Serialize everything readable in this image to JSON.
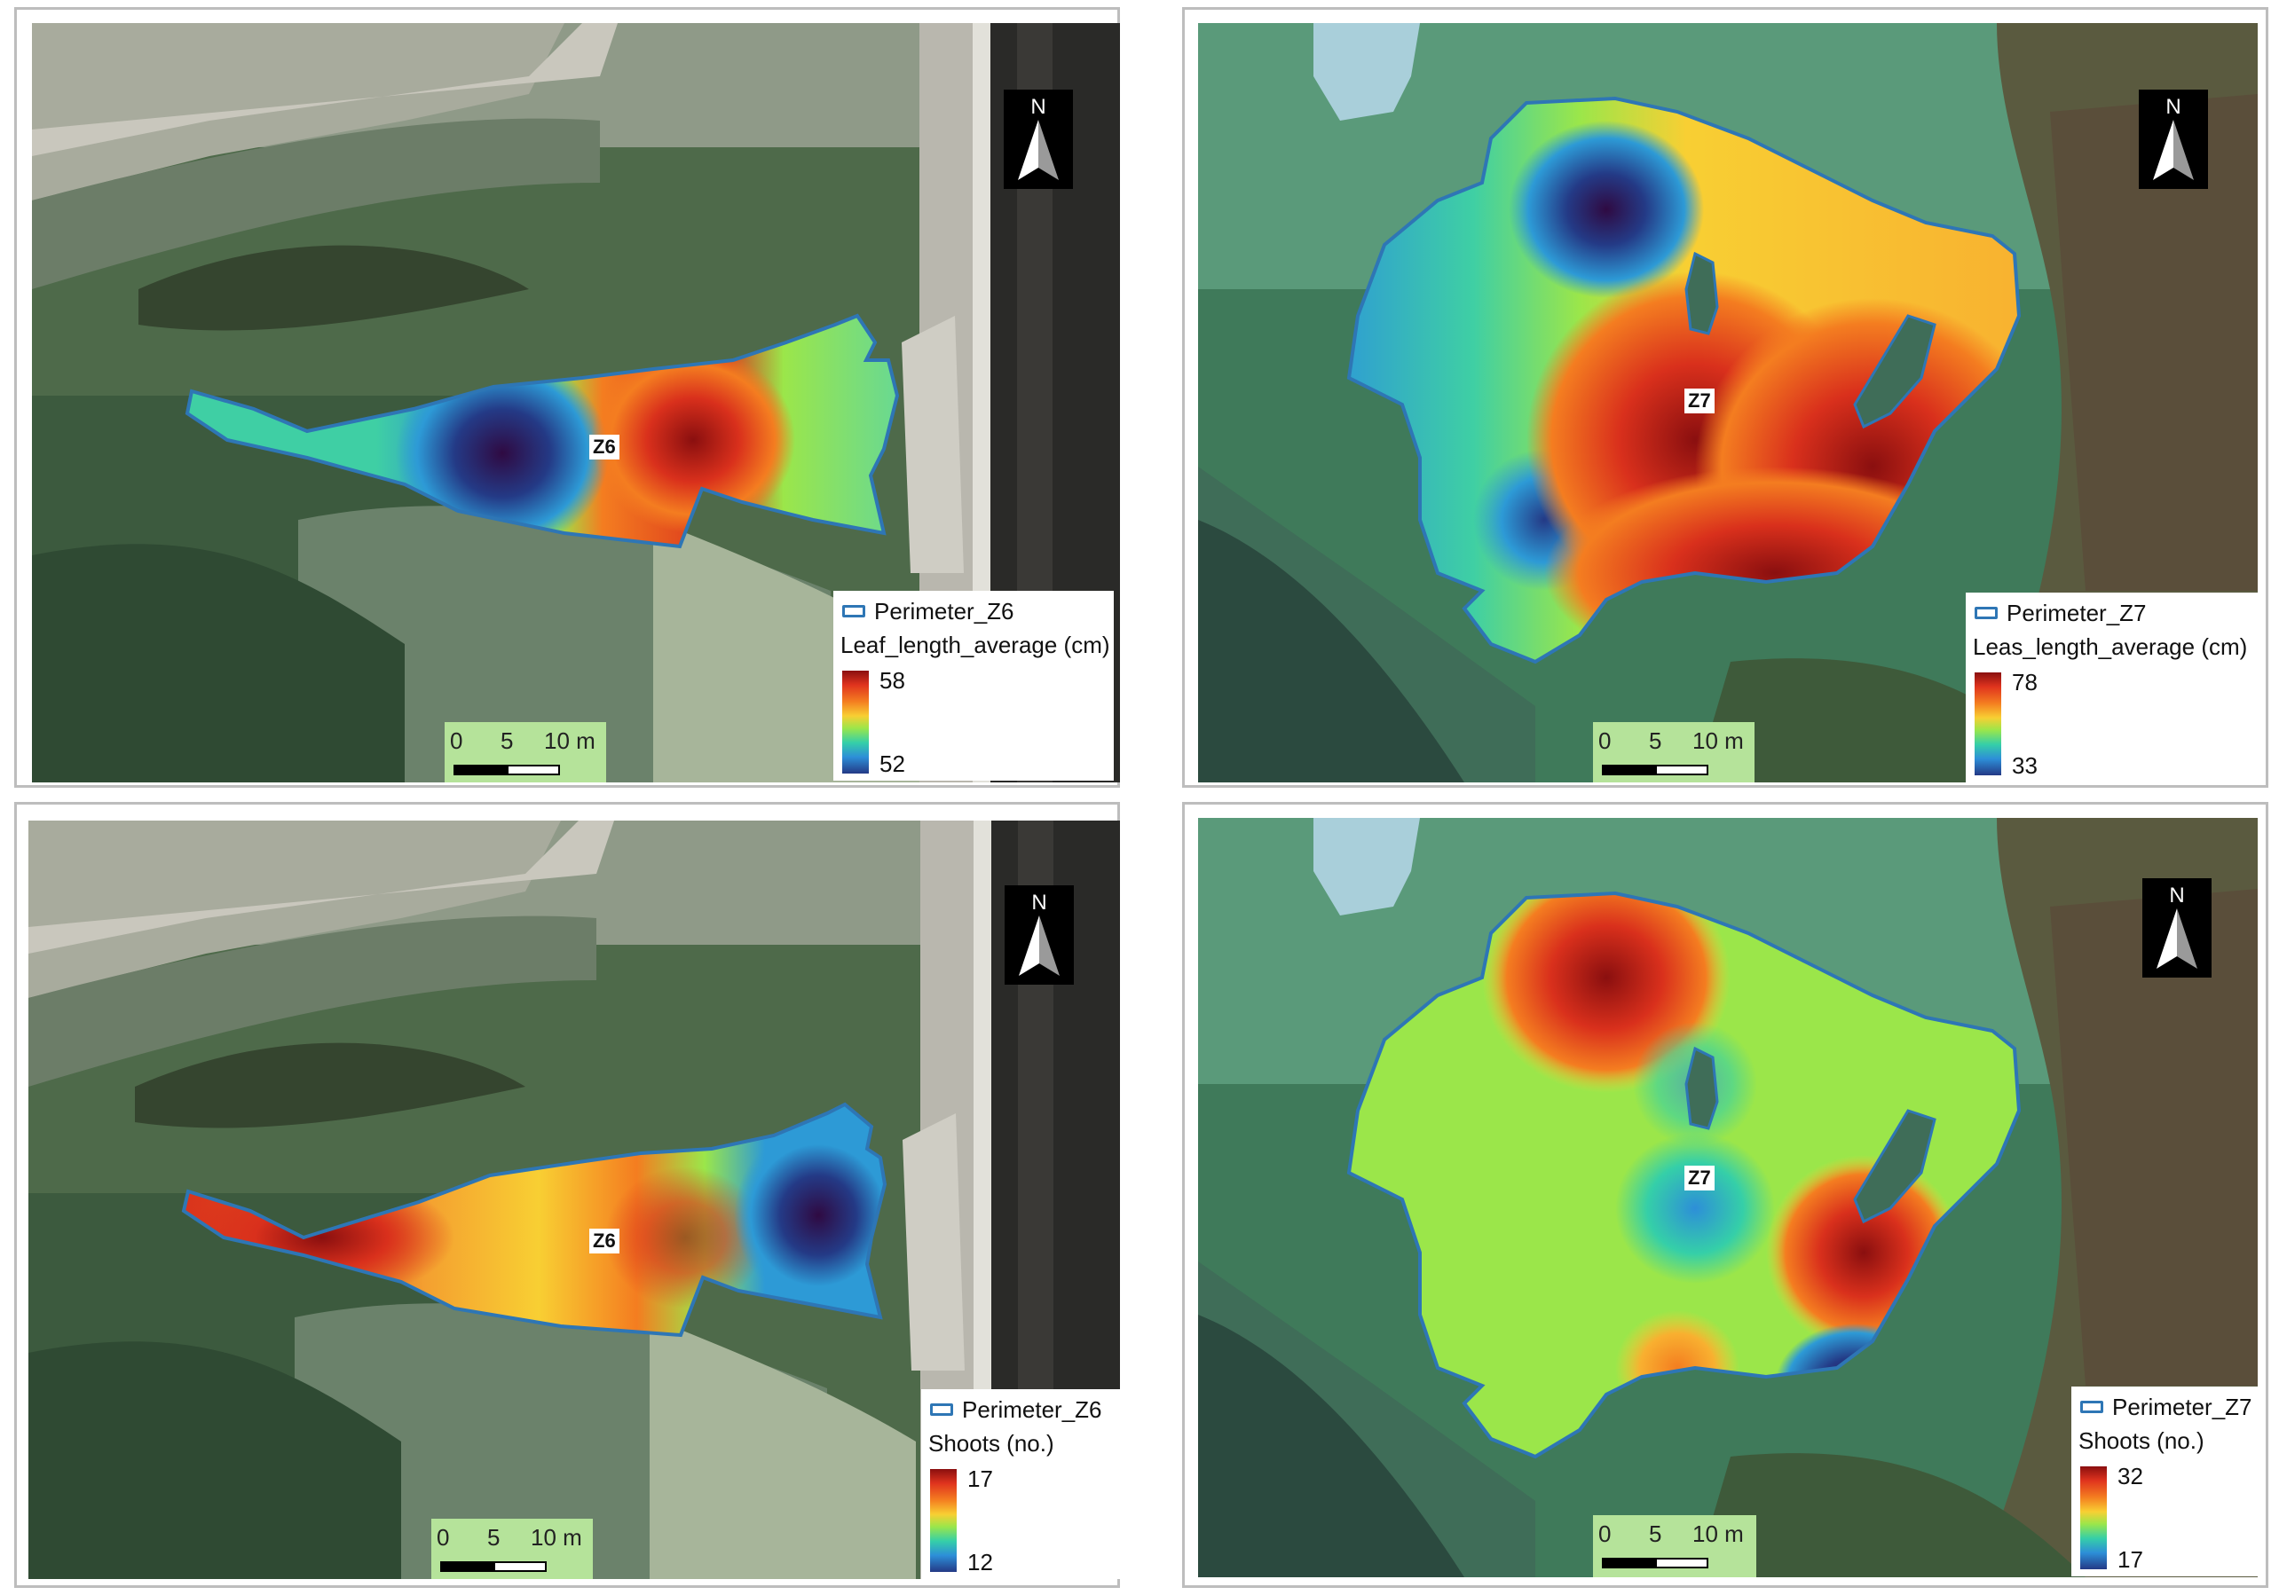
{
  "panels": [
    {
      "north": "N",
      "zone": "Z6",
      "legend": {
        "perimeter": "Perimeter_Z6",
        "variable": "Leaf_length_average (cm)",
        "max": "58",
        "min": "52"
      },
      "scale": {
        "t0": "0",
        "t5": "5",
        "t10": "10 m"
      }
    },
    {
      "north": "N",
      "zone": "Z7",
      "legend": {
        "perimeter": "Perimeter_Z7",
        "variable": "Leas_length_average (cm)",
        "max": "78",
        "min": "33"
      },
      "scale": {
        "t0": "0",
        "t5": "5",
        "t10": "10 m"
      }
    },
    {
      "north": "N",
      "zone": "Z6",
      "legend": {
        "perimeter": "Perimeter_Z6",
        "variable": "Shoots (no.)",
        "max": "17",
        "min": "12"
      },
      "scale": {
        "t0": "0",
        "t5": "5",
        "t10": "10 m"
      }
    },
    {
      "north": "N",
      "zone": "Z7",
      "legend": {
        "perimeter": "Perimeter_Z7",
        "variable": "Shoots (no.)",
        "max": "32",
        "min": "17"
      },
      "scale": {
        "t0": "0",
        "t5": "5",
        "t10": "10 m"
      }
    }
  ],
  "colors": {
    "perimeter": "#2e76b5",
    "ramp_high": "#8a0f0f",
    "ramp_mid": "#9be64a",
    "ramp_low": "#243a86",
    "scalebar_bg": "#b5e39a"
  }
}
